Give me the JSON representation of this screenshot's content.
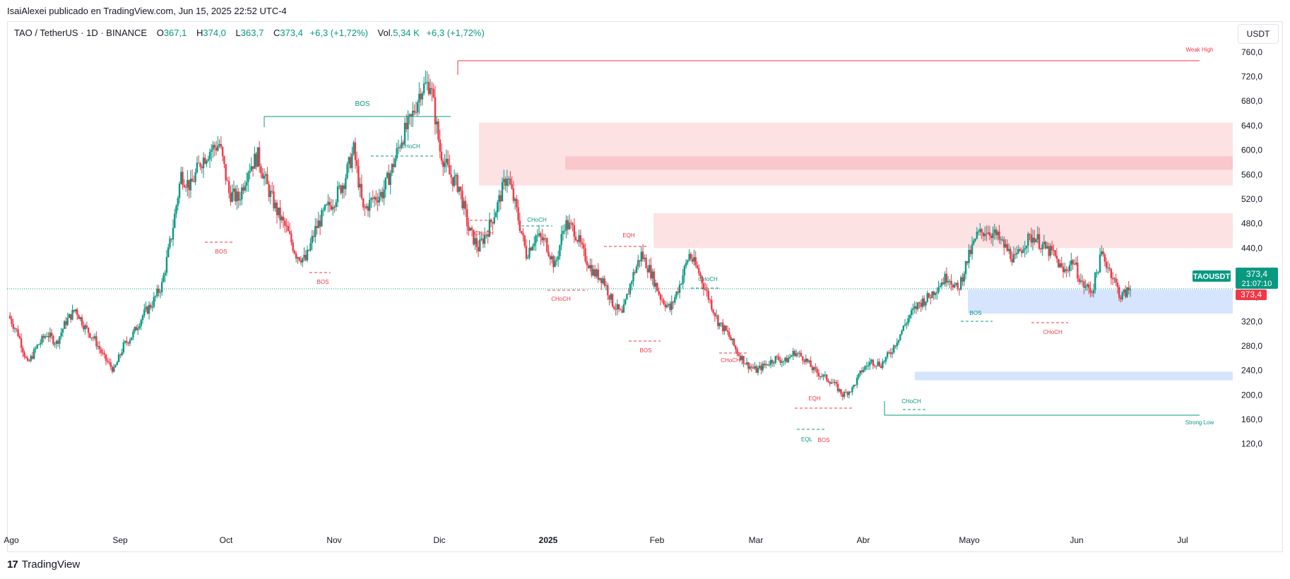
{
  "header": {
    "publish_line": "IsaiAlexei publicado en TradingView.com, Jun 15, 2025 22:52 UTC-4"
  },
  "legend": {
    "symbol": "TAO / TetherUS · 1D · BINANCE",
    "open_label": "O",
    "open": "367,1",
    "high_label": "H",
    "high": "374,0",
    "low_label": "L",
    "low": "363,7",
    "close_label": "C",
    "close": "373,4",
    "change": "+6,3 (+1,72%)",
    "volume_label": "Vol.",
    "volume": "5,34 K",
    "volume_change": "+6,3 (+1,72%)"
  },
  "currency_button": "USDT",
  "footer": {
    "logo_mark": "17",
    "brand": "TradingView"
  },
  "colors": {
    "up": "#089981",
    "down": "#f23645",
    "supply_zone": "#fde2e4",
    "supply_zone_dark": "#f9c7cc",
    "demand_zone": "#d6e4fd",
    "grid": "#ffffff"
  },
  "price_tags": {
    "symbol_tag": "TAOUSDT",
    "last_price": "373,4",
    "countdown": "21:07:10",
    "red_price": "373,4"
  },
  "chart_data": {
    "type": "candlestick",
    "y_axis": {
      "ticks": [
        "760,0",
        "720,0",
        "680,0",
        "640,0",
        "600,0",
        "560,0",
        "520,0",
        "480,0",
        "440,0",
        "400,0",
        "360,0",
        "320,0",
        "280,0",
        "240,0",
        "200,0",
        "160,0",
        "120,0"
      ],
      "tick_values": [
        760,
        720,
        680,
        640,
        600,
        560,
        520,
        480,
        440,
        400,
        360,
        320,
        280,
        240,
        200,
        160,
        120
      ],
      "ylim": [
        100,
        790
      ]
    },
    "x_axis": {
      "ticks": [
        "Ago",
        "Sep",
        "Oct",
        "Nov",
        "Dic",
        "2025",
        "Feb",
        "Mar",
        "Abr",
        "Mayo",
        "Jun",
        "Jul"
      ],
      "bold": [
        false,
        false,
        false,
        false,
        false,
        true,
        false,
        false,
        false,
        false,
        false,
        false
      ]
    },
    "last_price": 373.4,
    "price_path": [
      [
        0,
        330
      ],
      [
        6,
        300
      ],
      [
        12,
        250
      ],
      [
        18,
        280
      ],
      [
        24,
        300
      ],
      [
        30,
        285
      ],
      [
        36,
        320
      ],
      [
        42,
        340
      ],
      [
        48,
        310
      ],
      [
        54,
        290
      ],
      [
        60,
        260
      ],
      [
        66,
        240
      ],
      [
        72,
        280
      ],
      [
        78,
        300
      ],
      [
        84,
        330
      ],
      [
        90,
        350
      ],
      [
        96,
        380
      ],
      [
        102,
        460
      ],
      [
        108,
        560
      ],
      [
        114,
        540
      ],
      [
        120,
        580
      ],
      [
        126,
        600
      ],
      [
        132,
        610
      ],
      [
        138,
        530
      ],
      [
        144,
        520
      ],
      [
        150,
        570
      ],
      [
        156,
        590
      ],
      [
        162,
        540
      ],
      [
        168,
        500
      ],
      [
        174,
        470
      ],
      [
        180,
        430
      ],
      [
        186,
        420
      ],
      [
        192,
        470
      ],
      [
        198,
        500
      ],
      [
        204,
        520
      ],
      [
        210,
        550
      ],
      [
        216,
        600
      ],
      [
        222,
        500
      ],
      [
        228,
        520
      ],
      [
        234,
        530
      ],
      [
        240,
        570
      ],
      [
        246,
        620
      ],
      [
        252,
        650
      ],
      [
        258,
        700
      ],
      [
        264,
        710
      ],
      [
        270,
        600
      ],
      [
        276,
        560
      ],
      [
        282,
        540
      ],
      [
        288,
        470
      ],
      [
        294,
        440
      ],
      [
        300,
        470
      ],
      [
        306,
        510
      ],
      [
        312,
        560
      ],
      [
        318,
        500
      ],
      [
        324,
        430
      ],
      [
        330,
        460
      ],
      [
        336,
        450
      ],
      [
        342,
        410
      ],
      [
        348,
        480
      ],
      [
        354,
        470
      ],
      [
        360,
        430
      ],
      [
        366,
        400
      ],
      [
        372,
        390
      ],
      [
        378,
        350
      ],
      [
        384,
        330
      ],
      [
        390,
        390
      ],
      [
        396,
        430
      ],
      [
        402,
        400
      ],
      [
        408,
        360
      ],
      [
        414,
        340
      ],
      [
        420,
        380
      ],
      [
        426,
        430
      ],
      [
        432,
        400
      ],
      [
        438,
        360
      ],
      [
        444,
        320
      ],
      [
        450,
        300
      ],
      [
        456,
        270
      ],
      [
        462,
        250
      ],
      [
        468,
        240
      ],
      [
        474,
        250
      ],
      [
        480,
        260
      ],
      [
        486,
        255
      ],
      [
        492,
        270
      ],
      [
        498,
        260
      ],
      [
        504,
        240
      ],
      [
        510,
        230
      ],
      [
        516,
        220
      ],
      [
        522,
        200
      ],
      [
        528,
        210
      ],
      [
        534,
        240
      ],
      [
        540,
        255
      ],
      [
        546,
        250
      ],
      [
        552,
        270
      ],
      [
        558,
        300
      ],
      [
        564,
        330
      ],
      [
        570,
        350
      ],
      [
        576,
        360
      ],
      [
        582,
        380
      ],
      [
        588,
        395
      ],
      [
        594,
        370
      ],
      [
        600,
        420
      ],
      [
        606,
        460
      ],
      [
        612,
        470
      ],
      [
        618,
        460
      ],
      [
        624,
        440
      ],
      [
        630,
        420
      ],
      [
        636,
        450
      ],
      [
        642,
        460
      ],
      [
        648,
        440
      ],
      [
        654,
        430
      ],
      [
        660,
        400
      ],
      [
        666,
        420
      ],
      [
        672,
        380
      ],
      [
        678,
        370
      ],
      [
        684,
        430
      ],
      [
        690,
        400
      ],
      [
        696,
        360
      ],
      [
        702,
        373.4
      ]
    ],
    "annotations": [
      {
        "text": "BOS",
        "color": "up"
      },
      {
        "text": "CHoCH",
        "color": "up"
      },
      {
        "text": "BOS",
        "color": "down"
      },
      {
        "text": "BOS",
        "color": "down"
      },
      {
        "text": "CHoCH",
        "color": "down"
      },
      {
        "text": "CHoCH",
        "color": "up"
      },
      {
        "text": "CHoCH",
        "color": "down"
      },
      {
        "text": "EQH",
        "color": "down"
      },
      {
        "text": "CHoCH",
        "color": "up"
      },
      {
        "text": "BOS",
        "color": "down"
      },
      {
        "text": "CHoCH",
        "color": "down"
      },
      {
        "text": "EQH",
        "color": "down"
      },
      {
        "text": "EQL",
        "color": "up"
      },
      {
        "text": "BOS",
        "color": "down"
      },
      {
        "text": "CHoCH",
        "color": "up"
      },
      {
        "text": "BOS",
        "color": "up"
      },
      {
        "text": "CHoCH",
        "color": "down"
      }
    ],
    "levels": [
      {
        "text": "Weak High",
        "value": 746,
        "color": "down"
      },
      {
        "text": "Strong Low",
        "value": 167,
        "color": "up"
      }
    ],
    "zones": [
      {
        "kind": "supply",
        "from": 542,
        "to": 645
      },
      {
        "kind": "supply_dark",
        "from": 568,
        "to": 590
      },
      {
        "kind": "supply",
        "from": 440,
        "to": 497
      },
      {
        "kind": "demand",
        "from": 333,
        "to": 372
      },
      {
        "kind": "demand",
        "from": 224,
        "to": 238
      }
    ]
  }
}
